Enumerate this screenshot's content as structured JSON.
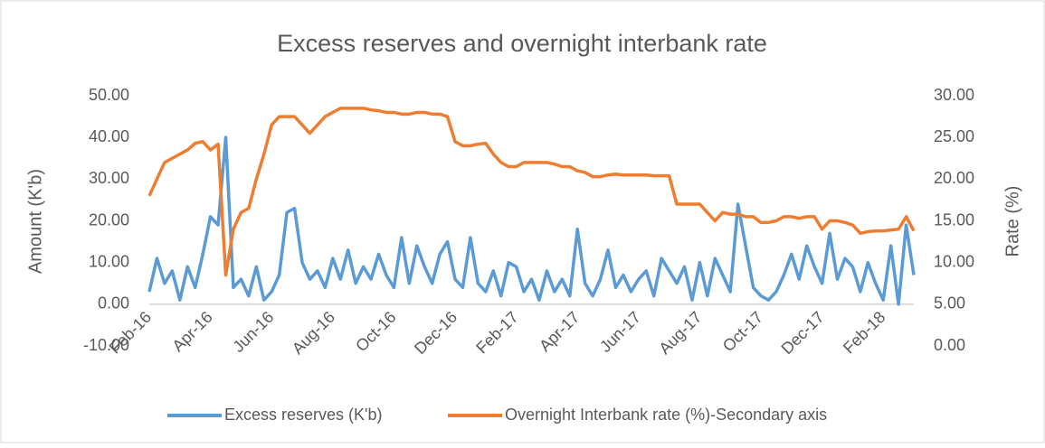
{
  "chart_data": {
    "type": "line",
    "title": "Excess reserves and overnight interbank rate",
    "y_label": "Amount (K'b)",
    "y2_label": "Rate (%)",
    "categories": [
      "Feb-16",
      null,
      null,
      null,
      null,
      null,
      null,
      null,
      "Apr-16",
      null,
      null,
      null,
      null,
      null,
      null,
      null,
      "Jun-16",
      null,
      null,
      null,
      null,
      null,
      null,
      null,
      "Aug-16",
      null,
      null,
      null,
      null,
      null,
      null,
      null,
      "Oct-16",
      null,
      null,
      null,
      null,
      null,
      null,
      null,
      "Dec-16",
      null,
      null,
      null,
      null,
      null,
      null,
      null,
      "Feb-17",
      null,
      null,
      null,
      null,
      null,
      null,
      null,
      "Apr-17",
      null,
      null,
      null,
      null,
      null,
      null,
      null,
      "Jun-17",
      null,
      null,
      null,
      null,
      null,
      null,
      null,
      "Aug-17",
      null,
      null,
      null,
      null,
      null,
      null,
      null,
      "Oct-17",
      null,
      null,
      null,
      null,
      null,
      null,
      null,
      "Dec-17",
      null,
      null,
      null,
      null,
      null,
      null,
      null,
      "Feb-18",
      null,
      null,
      null,
      null
    ],
    "series": [
      {
        "name": "Excess reserves (K'b)",
        "color": "#5b9bd5",
        "axis": "y",
        "values": [
          3,
          11,
          5,
          8,
          1,
          9,
          4,
          12,
          21,
          19,
          40,
          4,
          6,
          2,
          9,
          1,
          3,
          7,
          22,
          23,
          10,
          6,
          8,
          4,
          11,
          6,
          13,
          5,
          9,
          6,
          12,
          7,
          4,
          16,
          5,
          14,
          9,
          5,
          12,
          15,
          6,
          4,
          16,
          5,
          3,
          8,
          2,
          10,
          9,
          3,
          6,
          1,
          8,
          3,
          6,
          2,
          18,
          5,
          2,
          6,
          13,
          4,
          7,
          3,
          6,
          8,
          2,
          11,
          8,
          5,
          9,
          1,
          10,
          2,
          11,
          7,
          3,
          24,
          14,
          4,
          2,
          1,
          3,
          7,
          12,
          6,
          14,
          9,
          5,
          17,
          6,
          11,
          9,
          3,
          10,
          5,
          1,
          14,
          0,
          19,
          7
        ]
      },
      {
        "name": "Overnight Interbank rate (%)-Secondary axis",
        "color": "#ed7d31",
        "axis": "y2",
        "values": [
          18,
          20,
          22,
          22.5,
          23,
          23.5,
          24.3,
          24.5,
          23.5,
          24.2,
          8.5,
          14,
          16,
          16.5,
          20,
          23,
          26.5,
          27.5,
          27.5,
          27.5,
          26.5,
          25.5,
          26.5,
          27.5,
          28,
          28.5,
          28.5,
          28.5,
          28.5,
          28.3,
          28.2,
          28,
          28,
          27.8,
          27.8,
          28,
          28,
          27.8,
          27.8,
          27.5,
          24.5,
          24,
          24,
          24.2,
          24.3,
          23,
          22,
          21.5,
          21.5,
          22,
          22,
          22,
          22,
          21.8,
          21.5,
          21.5,
          21,
          20.8,
          20.3,
          20.3,
          20.5,
          20.6,
          20.5,
          20.5,
          20.5,
          20.5,
          20.4,
          20.4,
          20.4,
          17,
          17,
          17,
          17,
          16,
          15,
          16,
          15.8,
          15.8,
          15.5,
          15.5,
          14.8,
          14.8,
          15,
          15.5,
          15.5,
          15.3,
          15.5,
          15.5,
          14,
          15,
          15,
          14.8,
          14.5,
          13.5,
          13.7,
          13.8,
          13.8,
          13.9,
          14,
          15.5,
          13.8
        ]
      }
    ],
    "ylim": [
      -10,
      50
    ],
    "yticks": [
      {
        "value": -10,
        "label": "-10.00"
      },
      {
        "value": 0,
        "label": "0.00"
      },
      {
        "value": 10,
        "label": "10.00"
      },
      {
        "value": 20,
        "label": "20.00"
      },
      {
        "value": 30,
        "label": "30.00"
      },
      {
        "value": 40,
        "label": "40.00"
      },
      {
        "value": 50,
        "label": "50.00"
      }
    ],
    "y2lim": [
      0,
      30
    ],
    "y2ticks": [
      {
        "value": 0,
        "label": "0.00"
      },
      {
        "value": 5,
        "label": "5.00"
      },
      {
        "value": 10,
        "label": "10.00"
      },
      {
        "value": 15,
        "label": "15.00"
      },
      {
        "value": 20,
        "label": "20.00"
      },
      {
        "value": 25,
        "label": "25.00"
      },
      {
        "value": 30,
        "label": "30.00"
      }
    ],
    "grid": false,
    "legend": "bottom"
  }
}
